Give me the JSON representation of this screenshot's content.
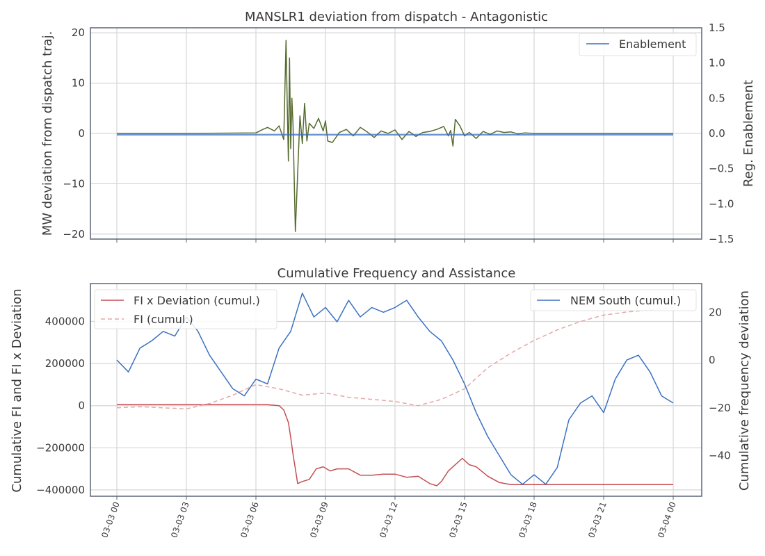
{
  "chart_data": [
    {
      "type": "line",
      "title": "MANSLR1 deviation from dispatch - Antagonistic",
      "ylabel": "MW deviation from dispatch traj.",
      "ylabel_right": "Reg. Enablement",
      "ylim": [
        -21,
        21
      ],
      "ylim_right": [
        -1.5,
        1.5
      ],
      "yticks": [
        20,
        10,
        0,
        -10,
        -20
      ],
      "ytick_labels": [
        "20",
        "10",
        "0",
        "−10",
        "−20"
      ],
      "yticks_right": [
        1.5,
        1.0,
        0.5,
        0.0,
        -0.5,
        -1.0,
        -1.5
      ],
      "ytick_labels_right": [
        "1.5",
        "1.0",
        "0.5",
        "0.0",
        "−0.5",
        "−1.0",
        "−1.5"
      ],
      "grid": true,
      "legend_position": "top-right",
      "series": [
        {
          "axis": "left",
          "color": "#556b2f",
          "x_hours": [
            0,
            3,
            6.0,
            6.3,
            6.5,
            6.8,
            7.0,
            7.2,
            7.3,
            7.35,
            7.4,
            7.45,
            7.5,
            7.55,
            7.6,
            7.7,
            7.8,
            7.9,
            8.0,
            8.1,
            8.2,
            8.3,
            8.5,
            8.7,
            8.9,
            9.0,
            9.1,
            9.3,
            9.6,
            9.9,
            10.2,
            10.5,
            10.8,
            11.1,
            11.4,
            11.7,
            12.0,
            12.3,
            12.6,
            12.9,
            13.2,
            13.5,
            13.8,
            14.1,
            14.3,
            14.4,
            14.5,
            14.6,
            14.8,
            15.0,
            15.2,
            15.5,
            15.8,
            16.1,
            16.4,
            16.7,
            17.0,
            17.3,
            17.6,
            18.0,
            21,
            24
          ],
          "values": [
            0,
            0,
            0.1,
            0.8,
            1.2,
            0.5,
            1.5,
            -1.2,
            18.5,
            6.0,
            -5.5,
            15.0,
            -3.0,
            7.0,
            2.0,
            -19.5,
            -8.0,
            3.5,
            -2.0,
            6.0,
            -1.5,
            2.0,
            1.0,
            3.0,
            0.5,
            2.5,
            -1.5,
            -1.8,
            0.2,
            0.8,
            -0.5,
            1.2,
            0.3,
            -0.8,
            0.5,
            0.0,
            0.7,
            -1.2,
            0.4,
            -0.6,
            0.2,
            0.4,
            0.8,
            1.4,
            -0.5,
            0.6,
            -2.5,
            2.8,
            1.5,
            -0.5,
            0.2,
            -1.0,
            0.4,
            -0.2,
            0.5,
            0.2,
            0.3,
            -0.1,
            0.1,
            0.0,
            0.0,
            0.0
          ]
        },
        {
          "name": "Enablement",
          "axis": "right",
          "color": "#3a70c2",
          "x_hours": [
            0,
            24
          ],
          "values": [
            -0.02,
            -0.02
          ]
        }
      ]
    },
    {
      "type": "line",
      "title": "Cumulative Frequency and Assistance",
      "ylabel": "Cumulative FI and FI x Deviation",
      "ylabel_right": "Cumulative frequency deviation",
      "xlabel": "",
      "ylim": [
        -430000,
        580000
      ],
      "ylim_right": [
        -57,
        32
      ],
      "yticks": [
        400000,
        200000,
        0,
        -200000,
        -400000
      ],
      "ytick_labels": [
        "400000",
        "200000",
        "0",
        "−200000",
        "−400000"
      ],
      "yticks_right": [
        20,
        0,
        -20,
        -40
      ],
      "ytick_labels_right": [
        "20",
        "0",
        "−20",
        "−40"
      ],
      "xticks_hours": [
        0,
        3,
        6,
        9,
        12,
        15,
        18,
        21,
        24
      ],
      "xtick_labels": [
        "03-03 00",
        "03-03 03",
        "03-03 06",
        "03-03 09",
        "03-03 12",
        "03-03 15",
        "03-03 18",
        "03-03 21",
        "03-04 00"
      ],
      "grid": true,
      "legend_position": "top-left and top-right",
      "series": [
        {
          "name": "FI x Deviation (cumul.)",
          "axis": "left",
          "color": "#c44e52",
          "dash": "solid",
          "x_hours": [
            0,
            3,
            6.5,
            7.0,
            7.2,
            7.4,
            7.5,
            7.6,
            7.7,
            7.8,
            8.0,
            8.3,
            8.6,
            8.9,
            9.2,
            9.5,
            10.0,
            10.5,
            11.0,
            11.5,
            12.0,
            12.5,
            13.0,
            13.5,
            13.8,
            14.0,
            14.3,
            14.6,
            14.9,
            15.2,
            15.5,
            16.0,
            16.5,
            17.0,
            17.5,
            18.0,
            21,
            24
          ],
          "values": [
            5000,
            5000,
            5000,
            0,
            -20000,
            -80000,
            -150000,
            -230000,
            -300000,
            -370000,
            -360000,
            -350000,
            -300000,
            -290000,
            -310000,
            -300000,
            -300000,
            -330000,
            -330000,
            -325000,
            -325000,
            -340000,
            -335000,
            -370000,
            -380000,
            -360000,
            -310000,
            -280000,
            -250000,
            -280000,
            -290000,
            -335000,
            -365000,
            -375000,
            -375000,
            -375000,
            -375000,
            -375000
          ]
        },
        {
          "name": "FI (cumul.)",
          "axis": "left",
          "color": "#e6a6a6",
          "dash": "dashed",
          "x_hours": [
            0,
            1,
            2,
            3,
            4,
            5,
            6,
            7,
            8,
            9,
            10,
            11,
            12,
            13,
            14,
            15,
            16,
            17,
            18,
            19,
            20,
            21,
            22,
            23,
            24
          ],
          "values": [
            -10000,
            -5000,
            -10000,
            -15000,
            10000,
            50000,
            100000,
            80000,
            50000,
            60000,
            40000,
            30000,
            20000,
            0,
            30000,
            80000,
            180000,
            250000,
            310000,
            360000,
            400000,
            430000,
            445000,
            455000,
            465000
          ]
        },
        {
          "name": "NEM South (cumul.)",
          "axis": "right",
          "color": "#3a70c2",
          "dash": "solid",
          "x_hours": [
            0,
            0.5,
            1.0,
            1.5,
            2.0,
            2.5,
            3.0,
            3.5,
            4.0,
            4.5,
            5.0,
            5.5,
            6.0,
            6.5,
            7.0,
            7.5,
            8.0,
            8.5,
            9.0,
            9.5,
            10.0,
            10.5,
            11.0,
            11.5,
            12.0,
            12.5,
            13.0,
            13.5,
            14.0,
            14.5,
            15.0,
            15.5,
            16.0,
            16.5,
            17.0,
            17.5,
            18.0,
            18.5,
            19.0,
            19.5,
            20.0,
            20.5,
            21.0,
            21.5,
            22.0,
            22.5,
            23.0,
            23.5,
            24.0
          ],
          "values": [
            0,
            -5,
            5,
            8,
            12,
            10,
            18,
            12,
            2,
            -5,
            -12,
            -15,
            -8,
            -10,
            5,
            12,
            28,
            18,
            22,
            16,
            25,
            18,
            22,
            20,
            22,
            25,
            18,
            12,
            8,
            0,
            -10,
            -22,
            -32,
            -40,
            -48,
            -52,
            -48,
            -52,
            -45,
            -25,
            -18,
            -15,
            -22,
            -8,
            0,
            2,
            -5,
            -15,
            -18
          ]
        }
      ]
    }
  ]
}
